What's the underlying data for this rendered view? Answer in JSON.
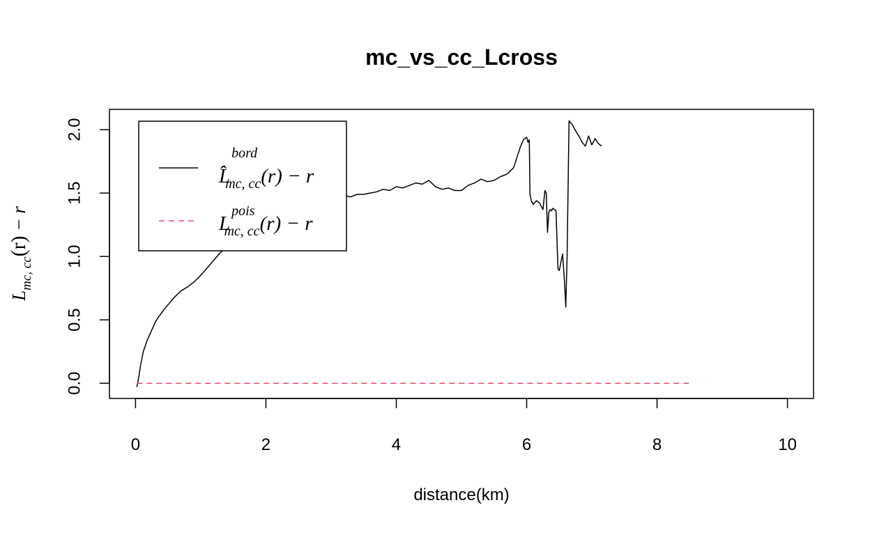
{
  "chart_data": {
    "type": "line",
    "title": "mc_vs_cc_Lcross",
    "xlabel": "distance(km)",
    "ylabel": {
      "main": "L",
      "sub": "mc, cc",
      "arg": "(r)",
      "minus": " − r"
    },
    "xlim": [
      -0.4,
      10.4
    ],
    "ylim": [
      -0.12,
      2.16
    ],
    "x_ticks": [
      {
        "value": 0,
        "label": "0"
      },
      {
        "value": 2,
        "label": "2"
      },
      {
        "value": 4,
        "label": "4"
      },
      {
        "value": 6,
        "label": "6"
      },
      {
        "value": 8,
        "label": "8"
      },
      {
        "value": 10,
        "label": "10"
      }
    ],
    "y_ticks": [
      {
        "value": 0.0,
        "label": "0.0"
      },
      {
        "value": 0.5,
        "label": "0.5"
      },
      {
        "value": 1.0,
        "label": "1.0"
      },
      {
        "value": 1.5,
        "label": "1.5"
      },
      {
        "value": 2.0,
        "label": "2.0"
      }
    ],
    "legend": {
      "position": "top-left",
      "entries": [
        {
          "main": "L̂",
          "sup": "bord",
          "sub": "mc, cc",
          "tail": "(r) − r",
          "color": "#000000",
          "dash": "solid"
        },
        {
          "main": "L",
          "sup": "pois",
          "sub": "mc, cc",
          "tail": "(r) − r",
          "color": "#DF536B",
          "dash": "dashed"
        }
      ]
    },
    "series": [
      {
        "color": "#000000",
        "dash": "solid",
        "x": [
          0.02,
          0.05,
          0.08,
          0.12,
          0.18,
          0.25,
          0.3,
          0.35,
          0.42,
          0.5,
          0.6,
          0.7,
          0.8,
          0.9,
          1.0,
          1.1,
          1.2,
          1.3,
          1.4,
          1.5,
          1.6,
          1.7,
          1.8,
          1.9,
          2.0,
          2.1,
          2.2,
          2.3,
          2.4,
          2.5,
          2.6,
          2.7,
          2.8,
          2.9,
          3.0,
          3.1,
          3.2,
          3.3,
          3.4,
          3.5,
          3.6,
          3.7,
          3.8,
          3.9,
          4.0,
          4.1,
          4.2,
          4.3,
          4.4,
          4.5,
          4.6,
          4.7,
          4.8,
          4.9,
          5.0,
          5.1,
          5.2,
          5.3,
          5.4,
          5.5,
          5.6,
          5.7,
          5.8,
          5.85,
          5.9,
          5.95,
          6.0,
          6.02,
          6.04,
          6.05,
          6.07,
          6.1,
          6.15,
          6.2,
          6.25,
          6.28,
          6.3,
          6.32,
          6.34,
          6.36,
          6.38,
          6.4,
          6.45,
          6.48,
          6.5,
          6.55,
          6.58,
          6.6,
          6.62,
          6.65,
          6.68,
          6.7,
          6.75,
          6.8,
          6.85,
          6.9,
          6.95,
          7.0,
          7.05,
          7.1,
          7.15
        ],
        "y": [
          -0.03,
          0.05,
          0.15,
          0.25,
          0.34,
          0.42,
          0.48,
          0.52,
          0.57,
          0.62,
          0.68,
          0.73,
          0.76,
          0.8,
          0.85,
          0.91,
          0.97,
          1.03,
          1.07,
          1.11,
          1.15,
          1.17,
          1.2,
          1.22,
          1.25,
          1.27,
          1.3,
          1.32,
          1.34,
          1.36,
          1.38,
          1.4,
          1.42,
          1.44,
          1.45,
          1.47,
          1.48,
          1.47,
          1.49,
          1.49,
          1.5,
          1.51,
          1.53,
          1.52,
          1.55,
          1.54,
          1.56,
          1.58,
          1.57,
          1.6,
          1.55,
          1.53,
          1.54,
          1.52,
          1.52,
          1.56,
          1.58,
          1.61,
          1.59,
          1.6,
          1.63,
          1.65,
          1.7,
          1.78,
          1.86,
          1.92,
          1.94,
          1.9,
          1.92,
          1.49,
          1.44,
          1.41,
          1.44,
          1.42,
          1.37,
          1.52,
          1.5,
          1.19,
          1.35,
          1.37,
          1.36,
          1.38,
          1.36,
          0.9,
          0.89,
          1.02,
          0.8,
          0.6,
          1.0,
          2.07,
          2.05,
          2.04,
          1.99,
          1.95,
          1.9,
          1.87,
          1.95,
          1.88,
          1.93,
          1.89,
          1.87
        ]
      },
      {
        "color": "#DF536B",
        "dash": "dashed",
        "x": [
          0.02,
          8.52
        ],
        "y": [
          0.0,
          0.0
        ]
      }
    ]
  }
}
